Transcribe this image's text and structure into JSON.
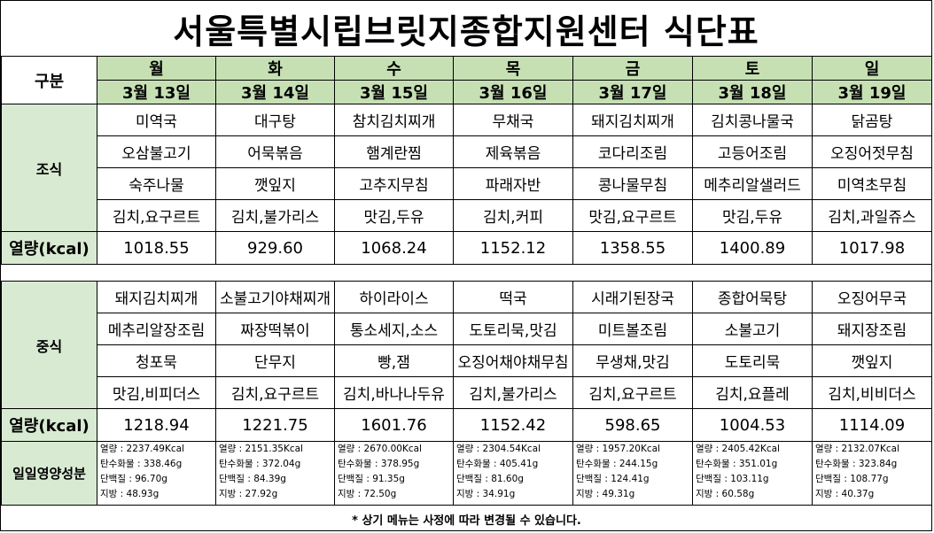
{
  "title": "서울특별시립브릿지종합지원센터  식단표",
  "header": {
    "label": "구분",
    "days": [
      {
        "day": "월",
        "date": "3월 13일"
      },
      {
        "day": "화",
        "date": "3월 14일"
      },
      {
        "day": "수",
        "date": "3월 15일"
      },
      {
        "day": "목",
        "date": "3월 16일"
      },
      {
        "day": "금",
        "date": "3월 17일"
      },
      {
        "day": "토",
        "date": "3월 18일"
      },
      {
        "day": "일",
        "date": "3월 19일"
      }
    ]
  },
  "breakfast": {
    "label": "조식",
    "rows": [
      [
        "미역국",
        "대구탕",
        "참치김치찌개",
        "무채국",
        "돼지김치찌개",
        "김치콩나물국",
        "닭곰탕"
      ],
      [
        "오삼불고기",
        "어묵볶음",
        "햄계란찜",
        "제육볶음",
        "코다리조림",
        "고등어조림",
        "오징어젓무침"
      ],
      [
        "숙주나물",
        "깻잎지",
        "고추지무침",
        "파래자반",
        "콩나물무침",
        "메추리알샐러드",
        "미역초무침"
      ],
      [
        "김치,요구르트",
        "김치,불가리스",
        "맛김,두유",
        "김치,커피",
        "맛김,요구르트",
        "맛김,두유",
        "김치,과일쥬스"
      ]
    ],
    "kcal_label": "열량(kcal)",
    "kcal": [
      "1018.55",
      "929.60",
      "1068.24",
      "1152.12",
      "1358.55",
      "1400.89",
      "1017.98"
    ]
  },
  "lunch": {
    "label": "중식",
    "rows": [
      [
        "돼지김치찌개",
        "소불고기야채찌개",
        "하이라이스",
        "떡국",
        "시래기된장국",
        "종합어묵탕",
        "오징어무국"
      ],
      [
        "메추리알장조림",
        "짜장떡볶이",
        "통소세지,소스",
        "도토리묵,맛김",
        "미트볼조림",
        "소불고기",
        "돼지장조림"
      ],
      [
        "청포묵",
        "단무지",
        "빵,잼",
        "오징어채야채무침",
        "무생채,맛김",
        "도토리묵",
        "깻잎지"
      ],
      [
        "맛김,비피더스",
        "김치,요구르트",
        "김치,바나나두유",
        "김치,불가리스",
        "김치,요구르트",
        "김치,요플레",
        "김치,비비더스"
      ]
    ],
    "kcal_label": "열량(kcal)",
    "kcal": [
      "1218.94",
      "1221.75",
      "1601.76",
      "1152.42",
      "598.65",
      "1004.53",
      "1114.09"
    ]
  },
  "nutrition": {
    "label": "일일영양성분",
    "days": [
      [
        "열량 : 2237.49Kcal",
        "탄수화물 : 338.46g",
        "단백질 : 96.70g",
        "지방 : 48.93g"
      ],
      [
        "열량 : 2151.35Kcal",
        "탄수화물 : 372.04g",
        "단백질 : 84.39g",
        "지방 : 27.92g"
      ],
      [
        "열량 : 2670.00Kcal",
        "탄수화물 : 378.95g",
        "단백질 : 91.35g",
        "지방 : 72.50g"
      ],
      [
        "열량 : 2304.54Kcal",
        "탄수화물 : 405.41g",
        "단백질 : 81.60g",
        "지방 : 34.91g"
      ],
      [
        "열량 : 1957.20Kcal",
        "탄수화물 : 244.15g",
        "단백질 : 124.41g",
        "지방 : 49.31g"
      ],
      [
        "열량 : 2405.42Kcal",
        "탄수화물 : 351.01g",
        "단백질 : 103.11g",
        "지방 : 60.58g"
      ],
      [
        "열량 : 2132.07Kcal",
        "탄수화물 : 323.84g",
        "단백질 : 108.77g",
        "지방 : 40.37g"
      ]
    ]
  },
  "footer": "* 상기 메뉴는 사정에 따라 변경될 수 있습니다.",
  "colors": {
    "header_green": "#c6e0b4",
    "label_green": "#d9ead3"
  }
}
